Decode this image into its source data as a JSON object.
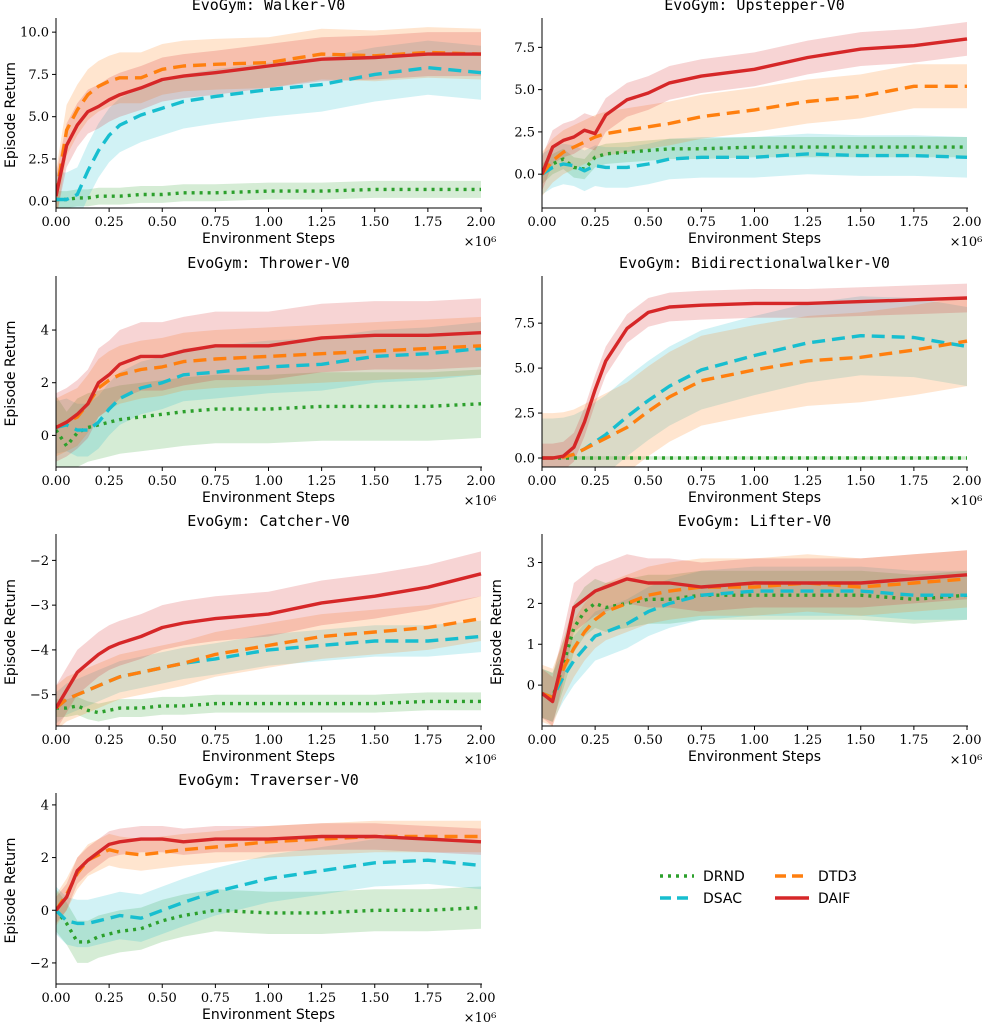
{
  "figure": {
    "legend": [
      {
        "name": "DRND",
        "color": "#2ca02c",
        "style": "dotted"
      },
      {
        "name": "DTD3",
        "color": "#ff7f0e",
        "style": "dashed"
      },
      {
        "name": "DSAC",
        "color": "#17becf",
        "style": "dashed"
      },
      {
        "name": "DAIF",
        "color": "#d62728",
        "style": "solid"
      }
    ],
    "x_multiplier_label": "×10⁶"
  },
  "chart_data": [
    {
      "type": "line",
      "title": "EvoGym:  Walker-V0",
      "xlabel": "Environment Steps",
      "ylabel": "Episode Return",
      "xlim": [
        0,
        2.0
      ],
      "ylim": [
        -0.4,
        10.6
      ],
      "xticks": [
        "0.00",
        "0.25",
        "0.50",
        "0.75",
        "1.00",
        "1.25",
        "1.50",
        "1.75",
        "2.00"
      ],
      "yticks": [
        0.0,
        2.5,
        5.0,
        7.5,
        10.0
      ],
      "ytick_labels": [
        "0.0",
        "2.5",
        "5.0",
        "7.5",
        "10.0"
      ],
      "x": [
        0,
        0.05,
        0.1,
        0.15,
        0.2,
        0.25,
        0.3,
        0.4,
        0.5,
        0.6,
        0.75,
        1.0,
        1.25,
        1.5,
        1.75,
        2.0
      ],
      "series": [
        {
          "name": "DRND",
          "values": [
            0.1,
            0.1,
            0.2,
            0.2,
            0.3,
            0.3,
            0.3,
            0.4,
            0.4,
            0.5,
            0.5,
            0.6,
            0.6,
            0.7,
            0.7,
            0.7
          ],
          "band": 0.5
        },
        {
          "name": "DSAC",
          "values": [
            0.1,
            0.1,
            0.4,
            1.8,
            3.0,
            3.9,
            4.5,
            5.1,
            5.5,
            5.9,
            6.2,
            6.6,
            6.9,
            7.5,
            7.9,
            7.6
          ],
          "band": 1.6
        },
        {
          "name": "DTD3",
          "values": [
            0.3,
            4.2,
            5.4,
            6.3,
            6.8,
            7.1,
            7.3,
            7.3,
            7.8,
            8.0,
            8.1,
            8.2,
            8.7,
            8.6,
            8.8,
            8.7
          ],
          "band": 1.5
        },
        {
          "name": "DAIF",
          "values": [
            0.3,
            3.3,
            4.5,
            5.3,
            5.6,
            6.0,
            6.3,
            6.7,
            7.2,
            7.4,
            7.6,
            8.0,
            8.4,
            8.5,
            8.7,
            8.7
          ],
          "band": 1.3
        }
      ]
    },
    {
      "type": "line",
      "title": "EvoGym:  Upstepper-V0",
      "xlabel": "Environment Steps",
      "ylabel": "",
      "xlim": [
        0,
        2.0
      ],
      "ylim": [
        -2.0,
        9.0
      ],
      "xticks": [
        "0.00",
        "0.25",
        "0.50",
        "0.75",
        "1.00",
        "1.25",
        "1.50",
        "1.75",
        "2.00"
      ],
      "yticks": [
        0.0,
        2.5,
        5.0,
        7.5
      ],
      "ytick_labels": [
        "0.0",
        "2.5",
        "5.0",
        "7.5"
      ],
      "x": [
        0,
        0.05,
        0.1,
        0.15,
        0.2,
        0.25,
        0.3,
        0.4,
        0.5,
        0.6,
        0.75,
        1.0,
        1.25,
        1.5,
        1.75,
        2.0
      ],
      "series": [
        {
          "name": "DRND",
          "values": [
            0.0,
            0.6,
            0.9,
            0.4,
            0.3,
            1.0,
            1.2,
            1.3,
            1.4,
            1.5,
            1.5,
            1.6,
            1.6,
            1.6,
            1.6,
            1.6
          ],
          "band": 0.6
        },
        {
          "name": "DSAC",
          "values": [
            0.0,
            0.4,
            0.6,
            0.5,
            0.2,
            0.5,
            0.4,
            0.4,
            0.6,
            0.9,
            1.0,
            1.0,
            1.2,
            1.1,
            1.1,
            1.0
          ],
          "band": 1.2
        },
        {
          "name": "DTD3",
          "values": [
            0.0,
            0.8,
            1.3,
            1.6,
            1.9,
            2.2,
            2.4,
            2.6,
            2.8,
            3.0,
            3.4,
            3.8,
            4.3,
            4.6,
            5.2,
            5.2
          ],
          "band": 1.3
        },
        {
          "name": "DAIF",
          "values": [
            0.0,
            1.6,
            2.0,
            2.2,
            2.6,
            2.4,
            3.5,
            4.4,
            4.8,
            5.4,
            5.8,
            6.2,
            6.9,
            7.4,
            7.6,
            8.0
          ],
          "band": 1.0
        }
      ]
    },
    {
      "type": "line",
      "title": "EvoGym:  Thrower-V0",
      "xlabel": "Environment Steps",
      "ylabel": "Episode Return",
      "xlim": [
        0,
        2.0
      ],
      "ylim": [
        -1.2,
        5.9
      ],
      "xticks": [
        "0.00",
        "0.25",
        "0.50",
        "0.75",
        "1.00",
        "1.25",
        "1.50",
        "1.75",
        "2.00"
      ],
      "yticks": [
        0,
        2,
        4
      ],
      "ytick_labels": [
        "0",
        "2",
        "4"
      ],
      "x": [
        0,
        0.05,
        0.1,
        0.15,
        0.2,
        0.25,
        0.3,
        0.4,
        0.5,
        0.6,
        0.75,
        1.0,
        1.25,
        1.5,
        1.75,
        2.0
      ],
      "series": [
        {
          "name": "DRND",
          "values": [
            0.2,
            -0.4,
            0.1,
            0.3,
            0.4,
            0.5,
            0.6,
            0.7,
            0.8,
            0.9,
            1.0,
            1.0,
            1.1,
            1.1,
            1.1,
            1.2
          ],
          "band": 1.3
        },
        {
          "name": "DSAC",
          "values": [
            0.3,
            0.4,
            0.2,
            0.2,
            0.5,
            1.0,
            1.4,
            1.8,
            2.0,
            2.3,
            2.4,
            2.6,
            2.7,
            3.0,
            3.1,
            3.3
          ],
          "band": 1.0
        },
        {
          "name": "DTD3",
          "values": [
            0.3,
            0.5,
            0.7,
            1.2,
            1.8,
            2.1,
            2.3,
            2.5,
            2.6,
            2.8,
            2.9,
            3.0,
            3.1,
            3.2,
            3.3,
            3.4
          ],
          "band": 1.1
        },
        {
          "name": "DAIF",
          "values": [
            0.3,
            0.5,
            0.8,
            1.2,
            2.0,
            2.3,
            2.7,
            3.0,
            3.0,
            3.2,
            3.4,
            3.4,
            3.7,
            3.8,
            3.8,
            3.9
          ],
          "band": 1.3
        }
      ]
    },
    {
      "type": "line",
      "title": "EvoGym:  Bidirectionalwalker-V0",
      "xlabel": "Environment Steps",
      "ylabel": "",
      "xlim": [
        0,
        2.0
      ],
      "ylim": [
        -0.5,
        9.9
      ],
      "xticks": [
        "0.00",
        "0.25",
        "0.50",
        "0.75",
        "1.00",
        "1.25",
        "1.50",
        "1.75",
        "2.00"
      ],
      "yticks": [
        0.0,
        2.5,
        5.0,
        7.5
      ],
      "ytick_labels": [
        "0.0",
        "2.5",
        "5.0",
        "7.5"
      ],
      "x": [
        0,
        0.05,
        0.1,
        0.15,
        0.2,
        0.25,
        0.3,
        0.4,
        0.5,
        0.6,
        0.75,
        1.0,
        1.25,
        1.5,
        1.75,
        2.0
      ],
      "series": [
        {
          "name": "DRND",
          "values": [
            0.0,
            0.0,
            0.0,
            0.0,
            0.0,
            0.0,
            0.0,
            0.0,
            0.0,
            0.0,
            0.0,
            0.0,
            0.0,
            0.0,
            0.0,
            0.0
          ],
          "band": 0.1
        },
        {
          "name": "DSAC",
          "values": [
            0.0,
            0.0,
            0.05,
            0.2,
            0.5,
            0.9,
            1.3,
            2.3,
            3.2,
            4.0,
            4.9,
            5.7,
            6.4,
            6.8,
            6.7,
            6.2
          ],
          "band": 2.2
        },
        {
          "name": "DTD3",
          "values": [
            0.0,
            0.0,
            0.05,
            0.2,
            0.5,
            0.8,
            1.1,
            1.7,
            2.6,
            3.4,
            4.3,
            4.9,
            5.4,
            5.6,
            6.0,
            6.5
          ],
          "band": 2.5
        },
        {
          "name": "DAIF",
          "values": [
            0.0,
            0.0,
            0.1,
            0.6,
            2.0,
            3.8,
            5.4,
            7.2,
            8.1,
            8.4,
            8.5,
            8.6,
            8.6,
            8.7,
            8.8,
            8.9
          ],
          "band": 0.8
        }
      ]
    },
    {
      "type": "line",
      "title": "EvoGym:  Catcher-V0",
      "xlabel": "Environment Steps",
      "ylabel": "Episode Return",
      "xlim": [
        0,
        2.0
      ],
      "ylim": [
        -5.7,
        -1.5
      ],
      "xticks": [
        "0.00",
        "0.25",
        "0.50",
        "0.75",
        "1.00",
        "1.25",
        "1.50",
        "1.75",
        "2.00"
      ],
      "yticks": [
        -5,
        -4,
        -3,
        -2
      ],
      "ytick_labels": [
        "−5",
        "−4",
        "−3",
        "−2"
      ],
      "x": [
        0,
        0.05,
        0.1,
        0.15,
        0.2,
        0.25,
        0.3,
        0.4,
        0.5,
        0.6,
        0.75,
        1.0,
        1.25,
        1.5,
        1.75,
        2.0
      ],
      "series": [
        {
          "name": "DRND",
          "values": [
            -5.3,
            -5.3,
            -5.25,
            -5.35,
            -5.4,
            -5.35,
            -5.3,
            -5.3,
            -5.25,
            -5.25,
            -5.2,
            -5.2,
            -5.2,
            -5.2,
            -5.15,
            -5.15
          ],
          "band": 0.2
        },
        {
          "name": "DSAC",
          "values": [
            -5.3,
            -5.1,
            -5.0,
            -4.9,
            -4.8,
            -4.7,
            -4.6,
            -4.5,
            -4.4,
            -4.3,
            -4.2,
            -4.0,
            -3.9,
            -3.8,
            -3.8,
            -3.7
          ],
          "band": 0.35
        },
        {
          "name": "DTD3",
          "values": [
            -5.3,
            -5.1,
            -5.0,
            -4.9,
            -4.8,
            -4.7,
            -4.6,
            -4.5,
            -4.4,
            -4.3,
            -4.1,
            -3.9,
            -3.7,
            -3.6,
            -3.5,
            -3.3
          ],
          "band": 0.5
        },
        {
          "name": "DAIF",
          "values": [
            -5.3,
            -4.9,
            -4.5,
            -4.3,
            -4.1,
            -3.95,
            -3.85,
            -3.7,
            -3.5,
            -3.4,
            -3.3,
            -3.2,
            -2.95,
            -2.8,
            -2.6,
            -2.3
          ],
          "band": 0.5
        }
      ]
    },
    {
      "type": "line",
      "title": "EvoGym:  Lifter-V0",
      "xlabel": "Environment Steps",
      "ylabel": "Episode Return",
      "xlim": [
        0,
        2.0
      ],
      "ylim": [
        -1.0,
        3.6
      ],
      "xticks": [
        "0.00",
        "0.25",
        "0.50",
        "0.75",
        "1.00",
        "1.25",
        "1.50",
        "1.75",
        "2.00"
      ],
      "yticks": [
        0,
        1,
        2,
        3
      ],
      "ytick_labels": [
        "0",
        "1",
        "2",
        "3"
      ],
      "x": [
        0,
        0.05,
        0.1,
        0.15,
        0.2,
        0.25,
        0.3,
        0.4,
        0.5,
        0.6,
        0.75,
        1.0,
        1.25,
        1.5,
        1.75,
        2.0
      ],
      "series": [
        {
          "name": "DRND",
          "values": [
            -0.2,
            -0.3,
            0.5,
            1.4,
            1.8,
            2.0,
            1.9,
            2.0,
            2.1,
            2.1,
            2.2,
            2.2,
            2.2,
            2.2,
            2.1,
            2.2
          ],
          "band": 0.6
        },
        {
          "name": "DSAC",
          "values": [
            -0.2,
            -0.3,
            0.2,
            0.6,
            0.9,
            1.2,
            1.3,
            1.5,
            1.8,
            2.0,
            2.2,
            2.3,
            2.3,
            2.3,
            2.2,
            2.2
          ],
          "band": 0.6
        },
        {
          "name": "DTD3",
          "values": [
            -0.2,
            -0.3,
            0.4,
            0.9,
            1.3,
            1.6,
            1.8,
            2.0,
            2.2,
            2.3,
            2.4,
            2.4,
            2.5,
            2.4,
            2.5,
            2.6
          ],
          "band": 0.7
        },
        {
          "name": "DAIF",
          "values": [
            -0.2,
            -0.4,
            0.7,
            1.9,
            2.1,
            2.3,
            2.4,
            2.6,
            2.5,
            2.5,
            2.4,
            2.5,
            2.5,
            2.5,
            2.6,
            2.7
          ],
          "band": 0.6
        }
      ]
    },
    {
      "type": "line",
      "title": "EvoGym:  Traverser-V0",
      "xlabel": "Environment Steps",
      "ylabel": "Episode Return",
      "xlim": [
        0,
        2.0
      ],
      "ylim": [
        -2.8,
        4.3
      ],
      "xticks": [
        "0.00",
        "0.25",
        "0.50",
        "0.75",
        "1.00",
        "1.25",
        "1.50",
        "1.75",
        "2.00"
      ],
      "yticks": [
        -2,
        0,
        2,
        4
      ],
      "ytick_labels": [
        "−2",
        "0",
        "2",
        "4"
      ],
      "x": [
        0,
        0.05,
        0.1,
        0.15,
        0.2,
        0.25,
        0.3,
        0.4,
        0.5,
        0.6,
        0.75,
        1.0,
        1.25,
        1.5,
        1.75,
        2.0
      ],
      "series": [
        {
          "name": "DRND",
          "values": [
            0.0,
            -0.5,
            -1.2,
            -1.2,
            -1.0,
            -0.9,
            -0.8,
            -0.7,
            -0.4,
            -0.2,
            0.0,
            -0.1,
            -0.1,
            0.0,
            0.0,
            0.1
          ],
          "band": 0.8
        },
        {
          "name": "DSAC",
          "values": [
            0.0,
            -0.4,
            -0.5,
            -0.5,
            -0.4,
            -0.3,
            -0.2,
            -0.3,
            0.0,
            0.3,
            0.7,
            1.2,
            1.5,
            1.8,
            1.9,
            1.7
          ],
          "band": 0.9
        },
        {
          "name": "DTD3",
          "values": [
            0.0,
            0.6,
            1.4,
            1.9,
            2.1,
            2.3,
            2.2,
            2.1,
            2.2,
            2.3,
            2.4,
            2.6,
            2.7,
            2.8,
            2.8,
            2.8
          ],
          "band": 0.6
        },
        {
          "name": "DAIF",
          "values": [
            0.0,
            0.5,
            1.5,
            1.9,
            2.2,
            2.5,
            2.6,
            2.7,
            2.7,
            2.6,
            2.7,
            2.7,
            2.8,
            2.8,
            2.7,
            2.6
          ],
          "band": 0.5
        }
      ]
    }
  ]
}
